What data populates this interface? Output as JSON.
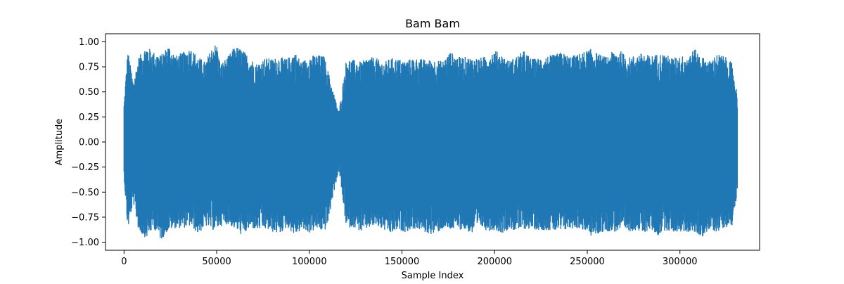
{
  "chart_data": {
    "type": "line",
    "title": "Bam Bam",
    "xlabel": "Sample Index",
    "ylabel": "Amplitude",
    "xlim": [
      -10000,
      343000
    ],
    "ylim": [
      -1.08,
      1.08
    ],
    "x_ticks": [
      0,
      50000,
      100000,
      150000,
      200000,
      250000,
      300000
    ],
    "x_tick_labels": [
      "0",
      "50000",
      "100000",
      "150000",
      "200000",
      "250000",
      "300000"
    ],
    "y_ticks": [
      1.0,
      0.75,
      0.5,
      0.25,
      0.0,
      -0.25,
      -0.5,
      -0.75,
      -1.0
    ],
    "y_tick_labels": [
      "1.00",
      "0.75",
      "0.50",
      "0.25",
      "0.00",
      "−0.25",
      "−0.50",
      "−0.75",
      "−1.00"
    ],
    "grid": false,
    "series": [
      {
        "color": "#1f77b4",
        "n_samples": 331000,
        "envelope": {
          "x": [
            0,
            2000,
            5000,
            8000,
            12000,
            16000,
            20000,
            24000,
            28000,
            32000,
            36000,
            40000,
            44000,
            48000,
            50000,
            52000,
            56000,
            60000,
            64000,
            68000,
            72000,
            76000,
            80000,
            84000,
            88000,
            92000,
            96000,
            100000,
            104000,
            108000,
            110000,
            113000,
            116000,
            120000,
            124000,
            128000,
            132000,
            136000,
            140000,
            144000,
            148000,
            152000,
            156000,
            160000,
            164000,
            168000,
            172000,
            176000,
            180000,
            184000,
            188000,
            192000,
            196000,
            200000,
            204000,
            208000,
            212000,
            216000,
            220000,
            224000,
            228000,
            232000,
            236000,
            240000,
            244000,
            248000,
            252000,
            256000,
            260000,
            264000,
            268000,
            272000,
            276000,
            280000,
            284000,
            288000,
            292000,
            296000,
            300000,
            304000,
            308000,
            312000,
            316000,
            320000,
            324000,
            328000,
            331000
          ],
          "upper": [
            0.38,
            0.92,
            0.6,
            0.85,
            0.96,
            0.9,
            0.87,
            0.97,
            0.86,
            0.9,
            0.94,
            0.85,
            0.8,
            0.97,
            0.98,
            0.78,
            0.85,
            0.96,
            0.92,
            0.84,
            0.78,
            0.84,
            0.83,
            0.85,
            0.83,
            0.9,
            0.8,
            0.86,
            0.87,
            0.86,
            0.72,
            0.5,
            0.3,
            0.83,
            0.82,
            0.8,
            0.85,
            0.84,
            0.79,
            0.84,
            0.83,
            0.81,
            0.84,
            0.83,
            0.82,
            0.82,
            0.81,
            0.9,
            0.85,
            0.85,
            0.84,
            0.84,
            0.86,
            0.92,
            0.87,
            0.81,
            0.86,
            0.91,
            0.83,
            0.84,
            0.86,
            0.87,
            0.9,
            0.86,
            0.87,
            0.9,
            0.93,
            0.88,
            0.85,
            0.91,
            0.91,
            0.84,
            0.87,
            0.89,
            0.86,
            0.88,
            0.88,
            0.84,
            0.86,
            0.86,
            0.93,
            0.85,
            0.81,
            0.88,
            0.86,
            0.79,
            0.48
          ],
          "lower": [
            -0.35,
            -0.88,
            -0.6,
            -0.9,
            -0.96,
            -0.86,
            -0.98,
            -0.88,
            -0.86,
            -0.86,
            -0.84,
            -0.92,
            -0.84,
            -0.88,
            -0.87,
            -0.84,
            -0.82,
            -0.87,
            -0.94,
            -0.86,
            -0.88,
            -0.87,
            -0.9,
            -0.92,
            -0.85,
            -0.93,
            -0.88,
            -0.91,
            -0.87,
            -0.9,
            -0.82,
            -0.52,
            -0.28,
            -0.86,
            -0.85,
            -0.9,
            -0.86,
            -0.84,
            -0.88,
            -0.92,
            -0.88,
            -0.9,
            -0.87,
            -0.88,
            -0.92,
            -0.92,
            -0.87,
            -0.88,
            -0.87,
            -0.88,
            -0.92,
            -0.84,
            -0.89,
            -0.88,
            -0.91,
            -0.87,
            -0.89,
            -0.87,
            -0.87,
            -0.88,
            -0.88,
            -0.89,
            -0.9,
            -0.87,
            -0.86,
            -0.88,
            -0.94,
            -0.92,
            -0.89,
            -0.9,
            -0.89,
            -0.9,
            -0.88,
            -0.92,
            -0.87,
            -0.94,
            -0.88,
            -0.9,
            -0.9,
            -0.9,
            -0.91,
            -0.95,
            -0.88,
            -0.9,
            -0.85,
            -0.85,
            -0.5
          ]
        }
      }
    ]
  }
}
